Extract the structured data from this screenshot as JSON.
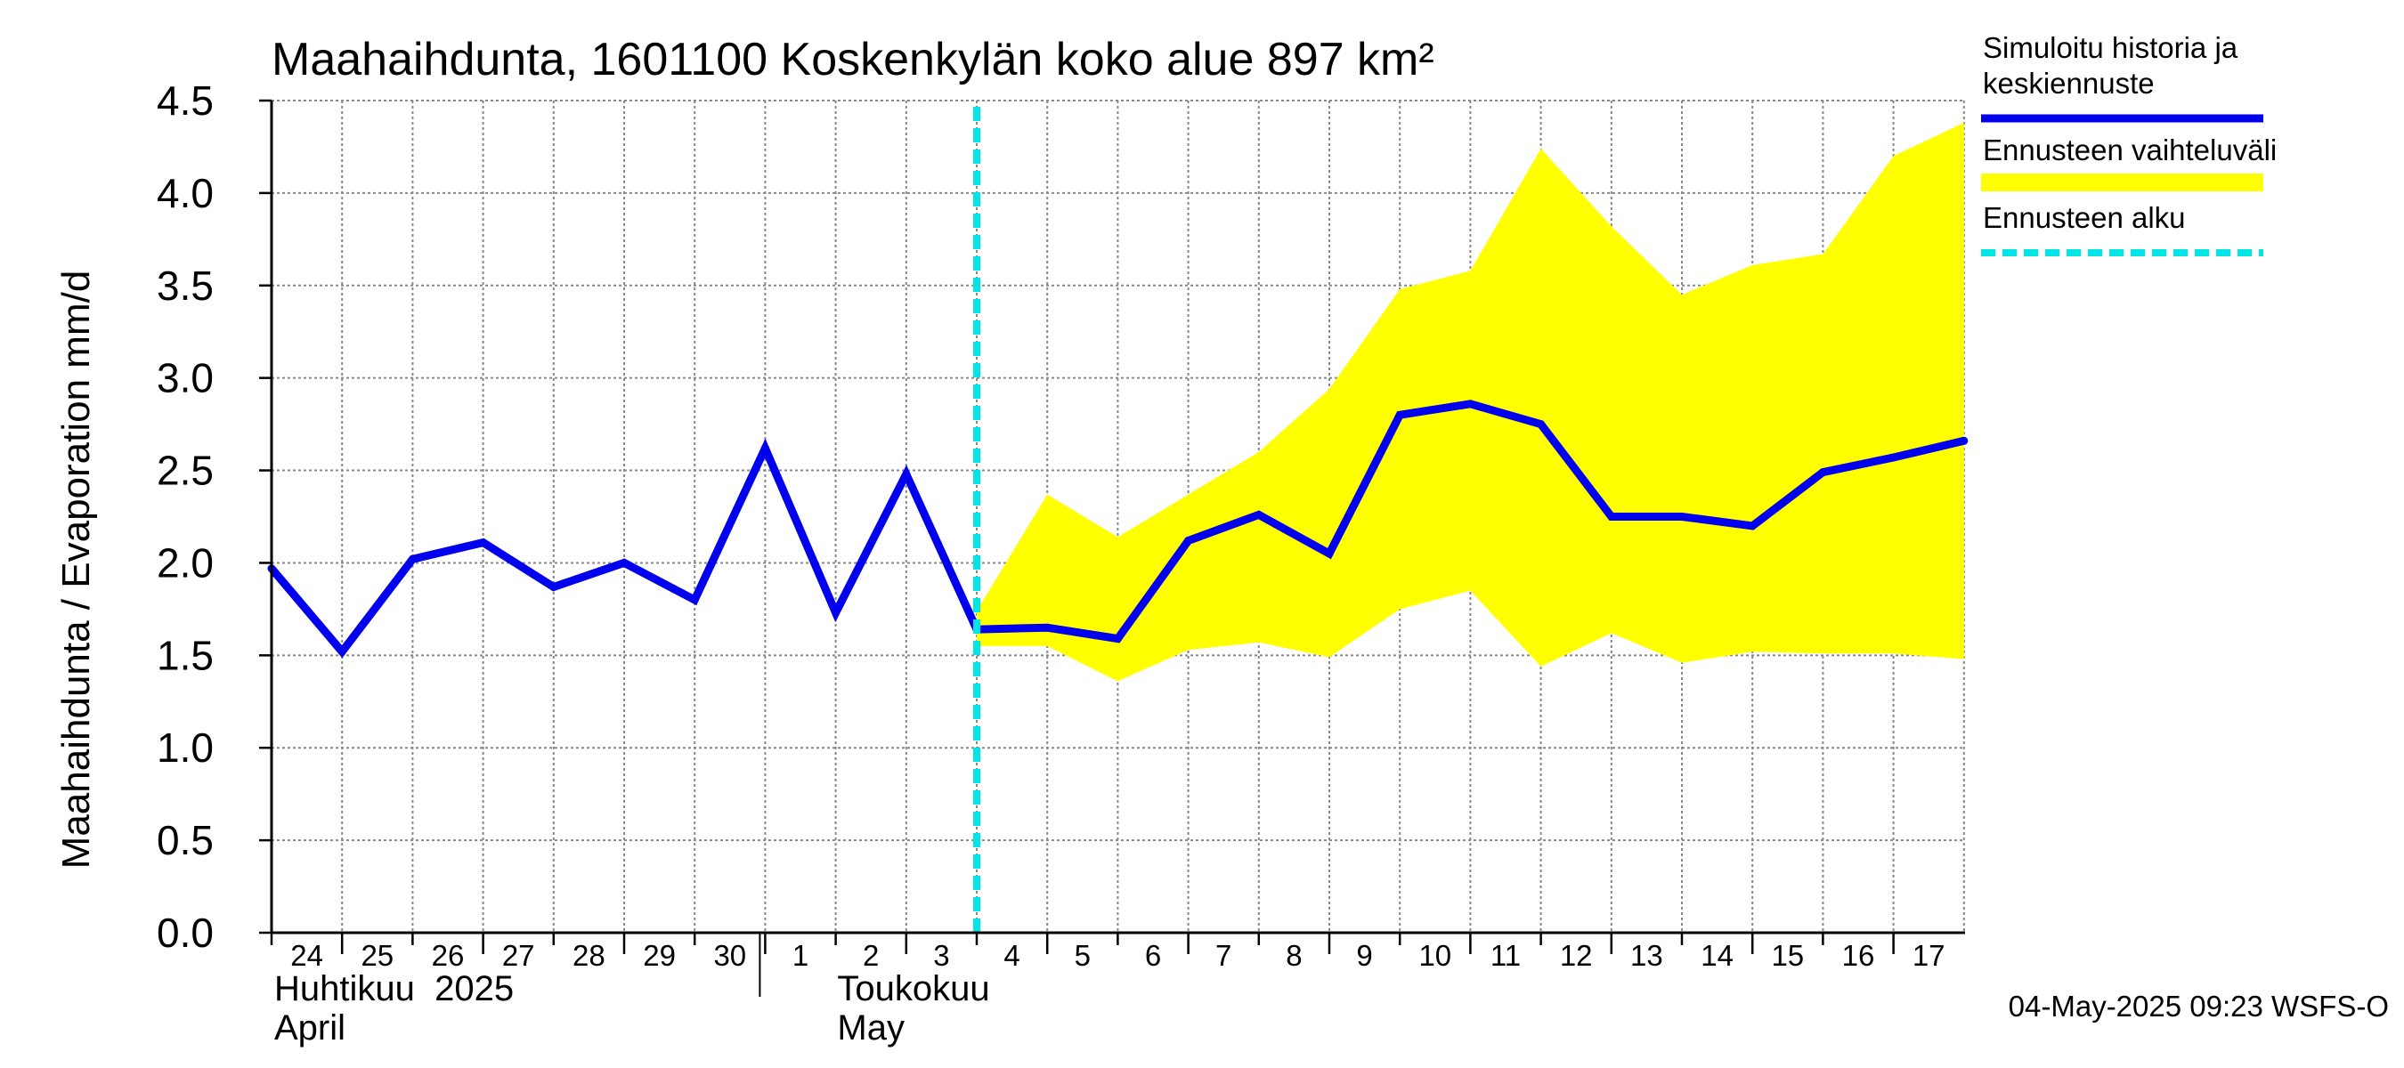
{
  "chart_data": {
    "type": "line",
    "title": "Maahaihdunta, 1601100 Koskenkylän koko alue 897 km²",
    "ylabel": "Maahaihdunta / Evaporation   mm/d",
    "ylim": [
      0,
      4.5
    ],
    "yticks": [
      "0.0",
      "0.5",
      "1.0",
      "1.5",
      "2.0",
      "2.5",
      "3.0",
      "3.5",
      "4.0",
      "4.5"
    ],
    "grid": true,
    "x_day_labels": [
      "24",
      "25",
      "26",
      "27",
      "28",
      "29",
      "30",
      "1",
      "2",
      "3",
      "4",
      "5",
      "6",
      "7",
      "8",
      "9",
      "10",
      "11",
      "12",
      "13",
      "14",
      "15",
      "16",
      "17"
    ],
    "month_labels": [
      {
        "line1": "Huhtikuu  2025",
        "line2": "April"
      },
      {
        "line1": "Toukokuu",
        "line2": "May"
      }
    ],
    "x": [
      "2025-04-24",
      "2025-04-25",
      "2025-04-26",
      "2025-04-27",
      "2025-04-28",
      "2025-04-29",
      "2025-04-30",
      "2025-05-01",
      "2025-05-02",
      "2025-05-03",
      "2025-05-04",
      "2025-05-05",
      "2025-05-06",
      "2025-05-07",
      "2025-05-08",
      "2025-05-09",
      "2025-05-10",
      "2025-05-11",
      "2025-05-12",
      "2025-05-13",
      "2025-05-14",
      "2025-05-15",
      "2025-05-16",
      "2025-05-17",
      "2025-05-18"
    ],
    "series": [
      {
        "name": "Simuloitu historia ja keskiennuste",
        "color": "#0000ee",
        "values": [
          1.97,
          1.52,
          2.02,
          2.11,
          1.87,
          2.0,
          1.8,
          2.62,
          1.73,
          2.48,
          1.64,
          1.65,
          1.59,
          2.12,
          2.26,
          2.05,
          2.8,
          2.86,
          2.75,
          2.25,
          2.25,
          2.2,
          2.49,
          2.57,
          2.66
        ]
      }
    ],
    "band": {
      "name": "Ennusteen vaihteluväli",
      "color": "#ffff00",
      "x": [
        "2025-05-04",
        "2025-05-05",
        "2025-05-06",
        "2025-05-07",
        "2025-05-08",
        "2025-05-09",
        "2025-05-10",
        "2025-05-11",
        "2025-05-12",
        "2025-05-13",
        "2025-05-14",
        "2025-05-15",
        "2025-05-16",
        "2025-05-17",
        "2025-05-18"
      ],
      "upper": [
        1.74,
        2.37,
        2.14,
        2.37,
        2.6,
        2.94,
        3.48,
        3.58,
        4.24,
        3.82,
        3.45,
        3.61,
        3.67,
        4.2,
        4.38
      ],
      "lower": [
        1.55,
        1.55,
        1.36,
        1.53,
        1.57,
        1.49,
        1.75,
        1.85,
        1.44,
        1.62,
        1.46,
        1.52,
        1.51,
        1.51,
        1.48
      ]
    },
    "forecast_start": {
      "name": "Ennusteen alku",
      "x": "2025-05-04",
      "color": "#00e5e5"
    },
    "legend": {
      "placement": "right",
      "items": [
        {
          "label_lines": [
            "Simuloitu historia ja",
            "keskiennuste"
          ],
          "color": "#0000ee",
          "style": "solid"
        },
        {
          "label_lines": [
            "Ennusteen vaihteluväli"
          ],
          "color": "#ffff00",
          "style": "band"
        },
        {
          "label_lines": [
            "Ennusteen alku"
          ],
          "color": "#00e5e5",
          "style": "dashed"
        }
      ]
    },
    "footer": "04-May-2025 09:23 WSFS-O"
  }
}
